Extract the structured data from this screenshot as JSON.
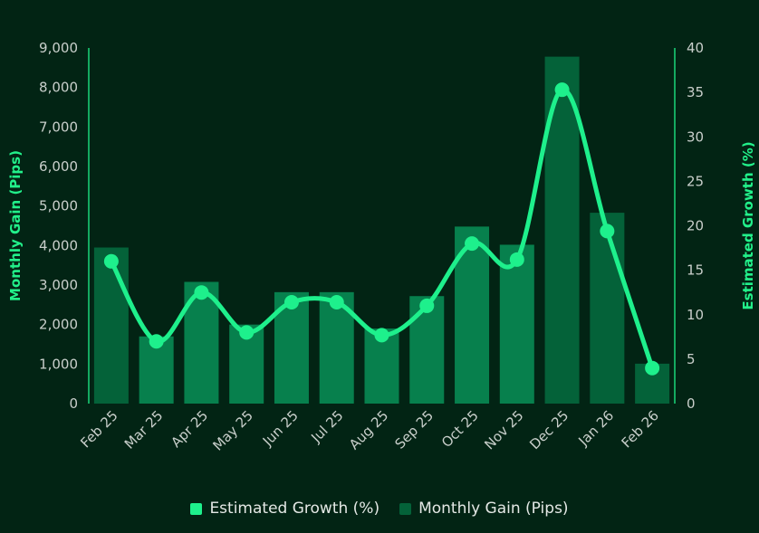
{
  "chart_data": {
    "type": "bar",
    "title": "",
    "categories": [
      "Feb 25",
      "Mar 25",
      "Apr 25",
      "May 25",
      "Jun 25",
      "Jul 25",
      "Aug 25",
      "Sep 25",
      "Oct 25",
      "Nov 25",
      "Dec 25",
      "Jan 26",
      "Feb 26"
    ],
    "series": [
      {
        "name": "Monthly Gain (Pips)",
        "type": "bar",
        "axis": "left",
        "values": [
          3950,
          1700,
          3080,
          2000,
          2820,
          2820,
          1900,
          2720,
          4480,
          4020,
          8780,
          4830,
          1010
        ]
      },
      {
        "name": "Estimated Growth (%)",
        "type": "line",
        "axis": "right",
        "values": [
          16,
          7,
          12.5,
          8,
          11.4,
          11.4,
          7.7,
          11,
          18,
          16.2,
          35.3,
          19.4,
          4
        ]
      }
    ],
    "ylabel_left": "Monthly Gain (Pips)",
    "ylabel_right": "Estimated Growth (%)",
    "ylim_left": [
      0,
      9000
    ],
    "ylim_right": [
      0,
      40
    ],
    "yticks_left": [
      "0",
      "1,000",
      "2,000",
      "3,000",
      "4,000",
      "5,000",
      "6,000",
      "7,000",
      "8,000",
      "9,000"
    ],
    "yticks_right": [
      "0",
      "5",
      "10",
      "15",
      "20",
      "25",
      "30",
      "35",
      "40"
    ],
    "legend_position": "bottom",
    "colors": {
      "bar": "#07804d",
      "bar_dark": "#046239",
      "line": "#1ef08c",
      "axis": "#1bd67a",
      "label": "#22f08a"
    }
  }
}
